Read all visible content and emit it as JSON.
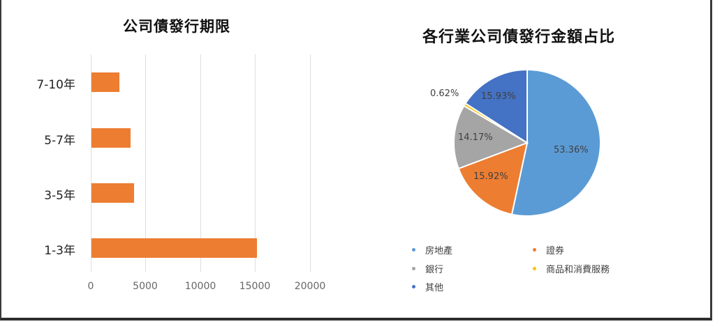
{
  "bar_chart": {
    "title": "公司債發行期限",
    "bar_color": "#ed7d31",
    "categories": [
      "7-10年",
      "5-7年",
      "3-5年",
      "1-3年"
    ],
    "xticks": [
      "0",
      "5000",
      "10000",
      "15000",
      "20000"
    ]
  },
  "pie_chart": {
    "title": "各行業公司債發行金額占比",
    "slices": [
      {
        "name": "房地產",
        "value": "53.36%",
        "color": "#5b9bd5"
      },
      {
        "name": "證券",
        "value": "15.92%",
        "color": "#ed7d31"
      },
      {
        "name": "銀行",
        "value": "14.17%",
        "color": "#a5a5a5"
      },
      {
        "name": "商品和消費服務",
        "value": "0.62%",
        "color": "#ffc000"
      },
      {
        "name": "其他",
        "value": "15.93%",
        "color": "#4472c4"
      }
    ]
  },
  "chart_data": [
    {
      "type": "bar",
      "orientation": "horizontal",
      "title": "公司債發行期限",
      "categories": [
        "7-10年",
        "5-7年",
        "3-5年",
        "1-3年"
      ],
      "values": [
        2550,
        3550,
        3900,
        15100
      ],
      "xlabel": "",
      "ylabel": "",
      "xlim": [
        0,
        20000
      ],
      "xticks": [
        0,
        5000,
        10000,
        15000,
        20000
      ],
      "grid": "vertical",
      "legend": "none",
      "color": "#ed7d31"
    },
    {
      "type": "pie",
      "title": "各行業公司債發行金額占比",
      "categories": [
        "房地產",
        "證券",
        "銀行",
        "商品和消費服務",
        "其他"
      ],
      "values": [
        53.36,
        15.92,
        14.17,
        0.62,
        15.93
      ],
      "unit": "%",
      "colors": [
        "#5b9bd5",
        "#ed7d31",
        "#a5a5a5",
        "#ffc000",
        "#4472c4"
      ],
      "legend_position": "bottom"
    }
  ]
}
